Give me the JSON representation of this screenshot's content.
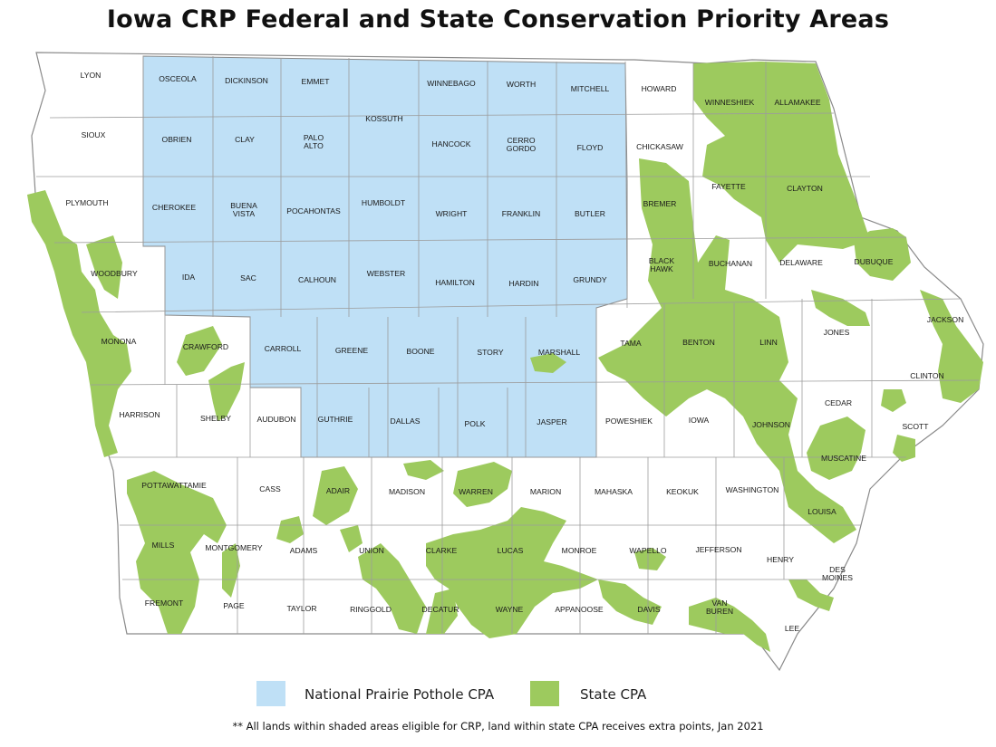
{
  "title": "Iowa CRP Federal and State Conservation Priority Areas",
  "colors": {
    "national_ppcpa": "#bfe0f6",
    "state_cpa": "#9dca5e",
    "county_border": "#9c9c9c",
    "background": "#ffffff"
  },
  "legend": [
    {
      "label": "National Prairie Pothole CPA",
      "color": "#bfe0f6"
    },
    {
      "label": "State CPA",
      "color": "#9dca5e"
    }
  ],
  "footnote": "** All lands within shaded areas eligible for CRP, land within state CPA receives extra points, Jan 2021",
  "counties": [
    {
      "name": "LYON"
    },
    {
      "name": "OSCEOLA"
    },
    {
      "name": "DICKINSON"
    },
    {
      "name": "EMMET"
    },
    {
      "name": "WINNEBAGO"
    },
    {
      "name": "WORTH"
    },
    {
      "name": "MITCHELL"
    },
    {
      "name": "HOWARD"
    },
    {
      "name": "WINNESHIEK"
    },
    {
      "name": "ALLAMAKEE"
    },
    {
      "name": "SIOUX"
    },
    {
      "name": "OBRIEN"
    },
    {
      "name": "CLAY"
    },
    {
      "name": "PALO ALTO"
    },
    {
      "name": "KOSSUTH"
    },
    {
      "name": "HANCOCK"
    },
    {
      "name": "CERRO GORDO"
    },
    {
      "name": "FLOYD"
    },
    {
      "name": "CHICKASAW"
    },
    {
      "name": "FAYETTE"
    },
    {
      "name": "CLAYTON"
    },
    {
      "name": "PLYMOUTH"
    },
    {
      "name": "CHEROKEE"
    },
    {
      "name": "BUENA VISTA"
    },
    {
      "name": "POCAHONTAS"
    },
    {
      "name": "HUMBOLDT"
    },
    {
      "name": "WRIGHT"
    },
    {
      "name": "FRANKLIN"
    },
    {
      "name": "BUTLER"
    },
    {
      "name": "BREMER"
    },
    {
      "name": "WOODBURY"
    },
    {
      "name": "IDA"
    },
    {
      "name": "SAC"
    },
    {
      "name": "CALHOUN"
    },
    {
      "name": "WEBSTER"
    },
    {
      "name": "HAMILTON"
    },
    {
      "name": "HARDIN"
    },
    {
      "name": "GRUNDY"
    },
    {
      "name": "BLACK HAWK"
    },
    {
      "name": "BUCHANAN"
    },
    {
      "name": "DELAWARE"
    },
    {
      "name": "DUBUQUE"
    },
    {
      "name": "MONONA"
    },
    {
      "name": "CRAWFORD"
    },
    {
      "name": "CARROLL"
    },
    {
      "name": "GREENE"
    },
    {
      "name": "BOONE"
    },
    {
      "name": "STORY"
    },
    {
      "name": "MARSHALL"
    },
    {
      "name": "TAMA"
    },
    {
      "name": "BENTON"
    },
    {
      "name": "LINN"
    },
    {
      "name": "JONES"
    },
    {
      "name": "JACKSON"
    },
    {
      "name": "CLINTON"
    },
    {
      "name": "HARRISON"
    },
    {
      "name": "SHELBY"
    },
    {
      "name": "AUDUBON"
    },
    {
      "name": "GUTHRIE"
    },
    {
      "name": "DALLAS"
    },
    {
      "name": "POLK"
    },
    {
      "name": "JASPER"
    },
    {
      "name": "POWESHIEK"
    },
    {
      "name": "IOWA"
    },
    {
      "name": "JOHNSON"
    },
    {
      "name": "CEDAR"
    },
    {
      "name": "SCOTT"
    },
    {
      "name": "POTTAWATTAMIE"
    },
    {
      "name": "CASS"
    },
    {
      "name": "ADAIR"
    },
    {
      "name": "MADISON"
    },
    {
      "name": "WARREN"
    },
    {
      "name": "MARION"
    },
    {
      "name": "MAHASKA"
    },
    {
      "name": "KEOKUK"
    },
    {
      "name": "WASHINGTON"
    },
    {
      "name": "MUSCATINE"
    },
    {
      "name": "LOUISA"
    },
    {
      "name": "MILLS"
    },
    {
      "name": "MONTGOMERY"
    },
    {
      "name": "ADAMS"
    },
    {
      "name": "UNION"
    },
    {
      "name": "CLARKE"
    },
    {
      "name": "LUCAS"
    },
    {
      "name": "MONROE"
    },
    {
      "name": "WAPELLO"
    },
    {
      "name": "JEFFERSON"
    },
    {
      "name": "HENRY"
    },
    {
      "name": "DES MOINES"
    },
    {
      "name": "FREMONT"
    },
    {
      "name": "PAGE"
    },
    {
      "name": "TAYLOR"
    },
    {
      "name": "RINGGOLD"
    },
    {
      "name": "DECATUR"
    },
    {
      "name": "WAYNE"
    },
    {
      "name": "APPANOOSE"
    },
    {
      "name": "DAVIS"
    },
    {
      "name": "VAN BUREN"
    },
    {
      "name": "LEE"
    }
  ]
}
